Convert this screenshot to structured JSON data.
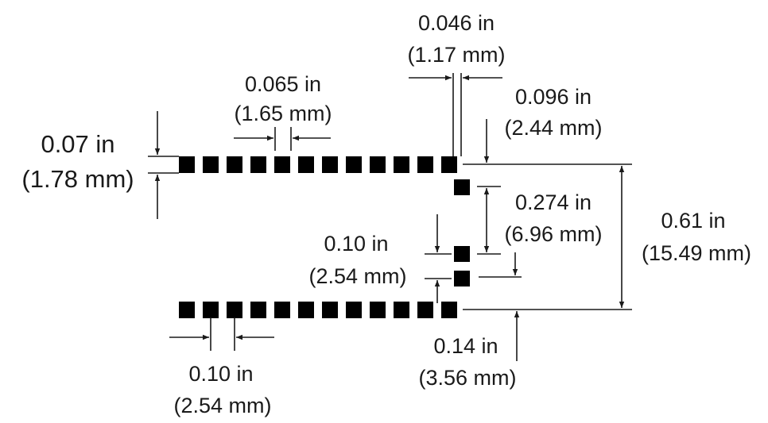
{
  "dim_pad_height": {
    "in": "0.07 in",
    "mm": "(1.78 mm)"
  },
  "dim_pad_gap_top": {
    "in": "0.065 in",
    "mm": "(1.65 mm)"
  },
  "dim_pad_gap_side": {
    "in": "0.046 in",
    "mm": "(1.17 mm)"
  },
  "dim_top_offset": {
    "in": "0.096 in",
    "mm": "(2.44 mm)"
  },
  "dim_side_span": {
    "in": "0.274 in",
    "mm": "(6.96 mm)"
  },
  "dim_total_height": {
    "in": "0.61 in",
    "mm": "(15.49 mm)"
  },
  "dim_side_pitch": {
    "in": "0.10 in",
    "mm": "(2.54 mm)"
  },
  "dim_bottom_offset": {
    "in": "0.14 in",
    "mm": "(3.56 mm)"
  },
  "dim_bottom_pitch": {
    "in": "0.10 in",
    "mm": "(2.54 mm)"
  },
  "pad_counts": {
    "top_row": 12,
    "bottom_row": 12,
    "side_upper": 1,
    "side_lower": 2
  },
  "colors": {
    "pad": "#000000",
    "ink": "#1a1a1a"
  }
}
